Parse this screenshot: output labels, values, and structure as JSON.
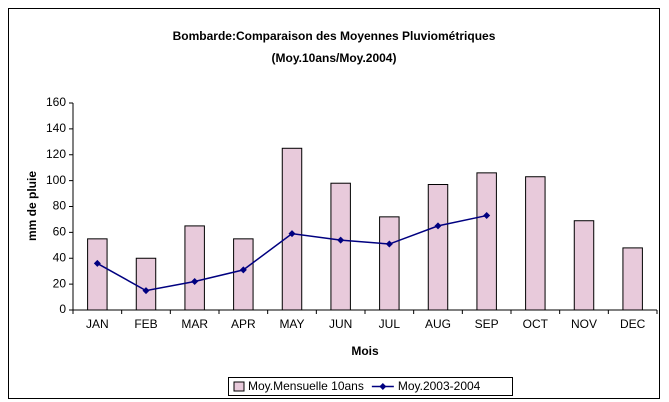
{
  "chart_data": {
    "type": "bar-line",
    "title": "Bombarde:Comparaison des Moyennes Pluviométriques",
    "subtitle": "(Moy.10ans/Moy.2004)",
    "x_label": "Mois",
    "y_label": "mm de pluie",
    "categories": [
      "JAN",
      "FEB",
      "MAR",
      "APR",
      "MAY",
      "JUN",
      "JUL",
      "AUG",
      "SEP",
      "OCT",
      "NOV",
      "DEC"
    ],
    "series": [
      {
        "name": "Moy.Mensuelle 10ans",
        "type": "bar",
        "color": "#e8cadb",
        "values": [
          55,
          40,
          65,
          55,
          125,
          98,
          72,
          97,
          106,
          103,
          69,
          48
        ]
      },
      {
        "name": "Moy.2003-2004",
        "type": "line",
        "color": "#000080",
        "values": [
          36,
          15,
          22,
          31,
          59,
          54,
          51,
          65,
          73,
          null,
          null,
          null
        ]
      }
    ],
    "ylim": [
      0,
      160
    ],
    "yticks": [
      0,
      20,
      40,
      60,
      80,
      100,
      120,
      140,
      160
    ],
    "grid": false
  }
}
